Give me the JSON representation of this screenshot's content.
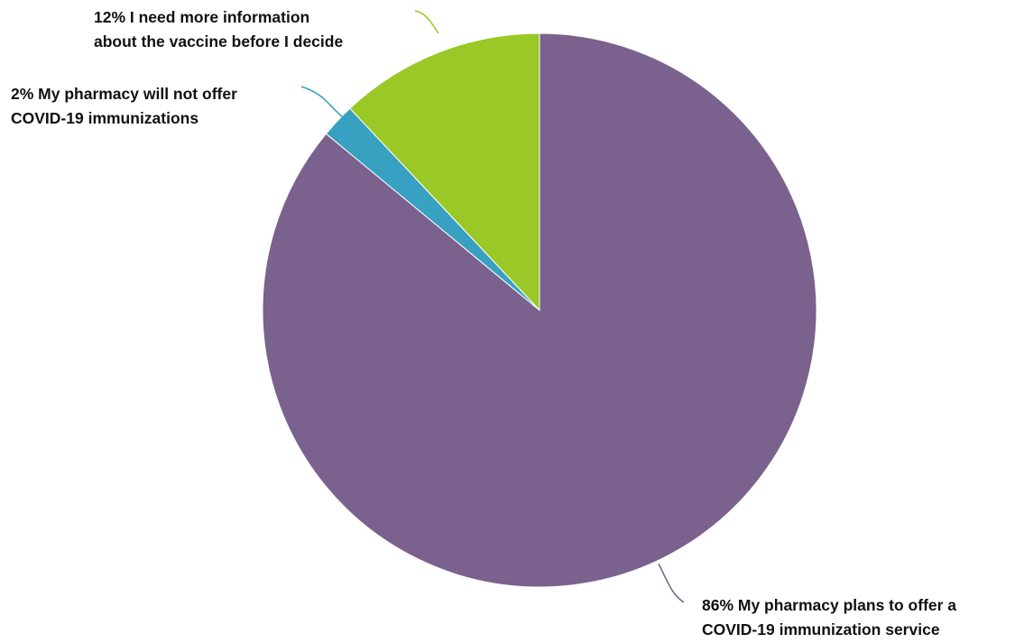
{
  "chart_data": {
    "type": "pie",
    "title": "",
    "slices": [
      {
        "value": 86,
        "label_line1": "86% My pharmacy plans to offer a",
        "label_line2": "COVID-19 immunization service",
        "color": "#7b618e"
      },
      {
        "value": 2,
        "label_line1": "2% My pharmacy will not offer",
        "label_line2": "COVID-19 immunizations",
        "color": "#38a0c0"
      },
      {
        "value": 12,
        "label_line1": "12% I need more information",
        "label_line2": "about the vaccine before I decide",
        "color": "#9ac827"
      }
    ]
  }
}
